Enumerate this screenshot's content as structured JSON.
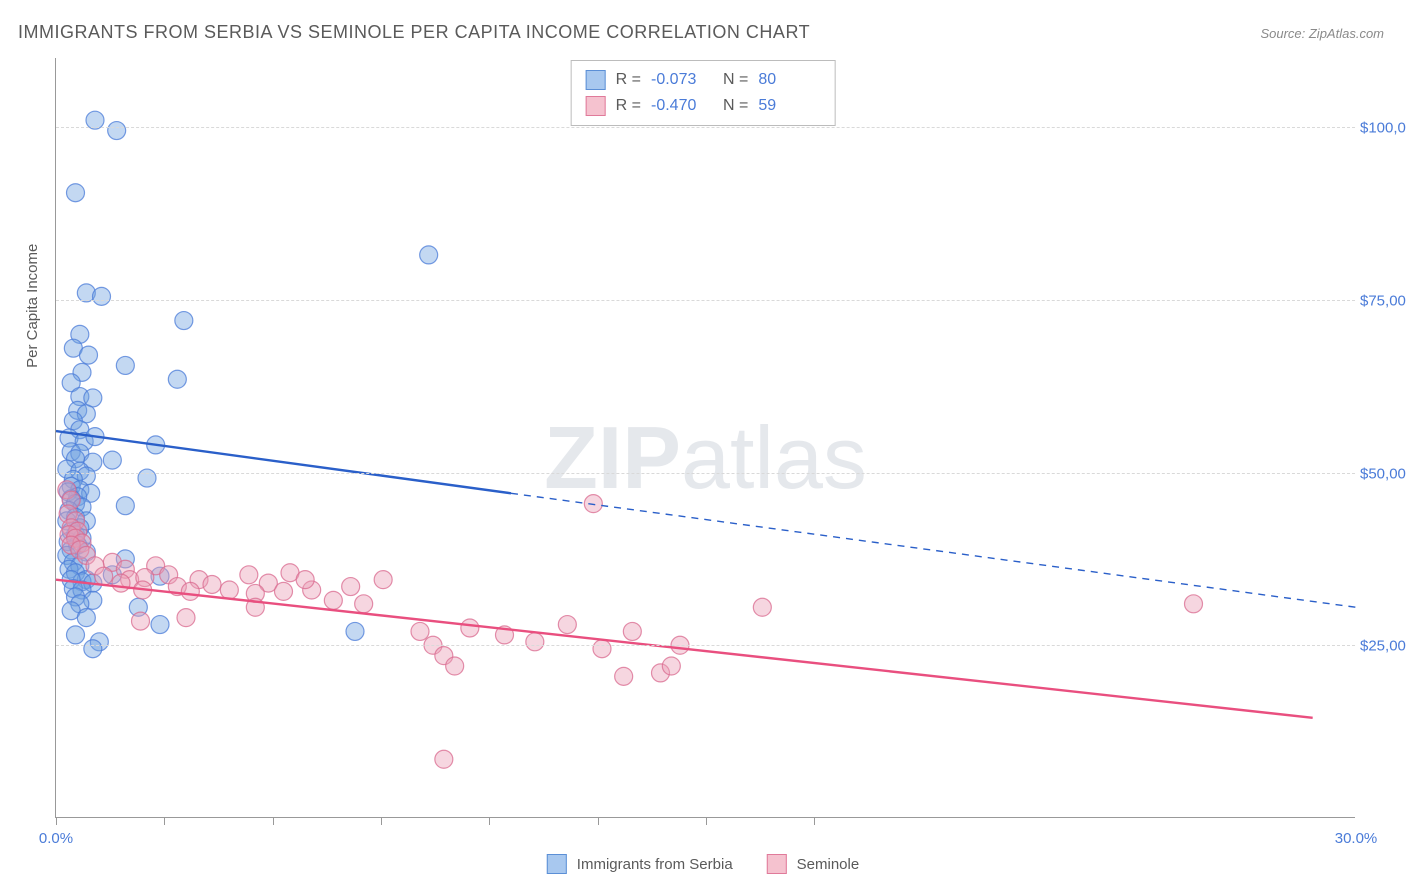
{
  "title": "IMMIGRANTS FROM SERBIA VS SEMINOLE PER CAPITA INCOME CORRELATION CHART",
  "source": "Source: ZipAtlas.com",
  "watermark": {
    "bold": "ZIP",
    "rest": "atlas"
  },
  "y_axis_label": "Per Capita Income",
  "chart": {
    "type": "scatter",
    "xlim": [
      0,
      30
    ],
    "ylim": [
      0,
      110000
    ],
    "x_ticks_minor": [
      0,
      2.5,
      5,
      7.5,
      10,
      12.5,
      15,
      17.5
    ],
    "x_tick_labels": [
      {
        "x": 0,
        "label": "0.0%"
      },
      {
        "x": 30,
        "label": "30.0%"
      }
    ],
    "y_grid": [
      {
        "y": 25000,
        "label": "$25,000"
      },
      {
        "y": 50000,
        "label": "$50,000"
      },
      {
        "y": 75000,
        "label": "$75,000"
      },
      {
        "y": 100000,
        "label": "$100,000"
      }
    ],
    "legend_top": [
      {
        "swatch_fill": "#a8c8ef",
        "swatch_stroke": "#5b8fd6",
        "r_label": "R =",
        "r_value": "-0.073",
        "n_label": "N =",
        "n_value": "80"
      },
      {
        "swatch_fill": "#f5c2cf",
        "swatch_stroke": "#e07a9a",
        "r_label": "R =",
        "r_value": "-0.470",
        "n_label": "N =",
        "n_value": "59"
      }
    ],
    "legend_bottom": [
      {
        "swatch_fill": "#a8c8ef",
        "swatch_stroke": "#5b8fd6",
        "label": "Immigrants from Serbia"
      },
      {
        "swatch_fill": "#f5c2cf",
        "swatch_stroke": "#e07a9a",
        "label": "Seminole"
      }
    ],
    "marker_radius": 9,
    "marker_opacity": 0.42,
    "series": [
      {
        "name": "serbia",
        "fill": "#6fa3e0",
        "stroke": "#4a7bd8",
        "points": [
          [
            0.9,
            101000
          ],
          [
            1.4,
            99500
          ],
          [
            0.45,
            90500
          ],
          [
            0.7,
            76000
          ],
          [
            1.05,
            75500
          ],
          [
            2.95,
            72000
          ],
          [
            0.55,
            70000
          ],
          [
            0.4,
            68000
          ],
          [
            0.75,
            67000
          ],
          [
            0.6,
            64500
          ],
          [
            1.6,
            65500
          ],
          [
            2.8,
            63500
          ],
          [
            0.35,
            63000
          ],
          [
            0.55,
            61000
          ],
          [
            0.85,
            60800
          ],
          [
            0.5,
            59000
          ],
          [
            0.7,
            58500
          ],
          [
            0.4,
            57500
          ],
          [
            0.55,
            56200
          ],
          [
            0.3,
            55000
          ],
          [
            0.65,
            54500
          ],
          [
            0.9,
            55200
          ],
          [
            2.3,
            54000
          ],
          [
            0.35,
            53000
          ],
          [
            0.55,
            52800
          ],
          [
            0.45,
            52000
          ],
          [
            0.85,
            51500
          ],
          [
            1.3,
            51800
          ],
          [
            0.25,
            50500
          ],
          [
            0.55,
            50200
          ],
          [
            0.7,
            49500
          ],
          [
            0.4,
            49000
          ],
          [
            2.1,
            49200
          ],
          [
            0.35,
            48000
          ],
          [
            0.55,
            47500
          ],
          [
            0.28,
            47200
          ],
          [
            0.8,
            47000
          ],
          [
            0.5,
            46500
          ],
          [
            0.35,
            46200
          ],
          [
            0.45,
            45500
          ],
          [
            0.6,
            45000
          ],
          [
            0.3,
            44500
          ],
          [
            8.6,
            81500
          ],
          [
            0.45,
            43500
          ],
          [
            0.7,
            43000
          ],
          [
            0.25,
            43000
          ],
          [
            1.6,
            45200
          ],
          [
            0.55,
            42000
          ],
          [
            0.35,
            41500
          ],
          [
            0.45,
            41000
          ],
          [
            0.6,
            40500
          ],
          [
            0.28,
            40000
          ],
          [
            0.5,
            39500
          ],
          [
            0.35,
            38800
          ],
          [
            0.7,
            38500
          ],
          [
            0.25,
            38000
          ],
          [
            1.6,
            37500
          ],
          [
            0.4,
            37000
          ],
          [
            0.55,
            36500
          ],
          [
            0.3,
            36000
          ],
          [
            0.45,
            35500
          ],
          [
            2.4,
            35000
          ],
          [
            0.7,
            34500
          ],
          [
            0.6,
            34200
          ],
          [
            1.3,
            35200
          ],
          [
            0.35,
            34500
          ],
          [
            0.85,
            34000
          ],
          [
            0.4,
            33200
          ],
          [
            0.6,
            33000
          ],
          [
            0.45,
            32000
          ],
          [
            0.85,
            31500
          ],
          [
            0.55,
            31000
          ],
          [
            1.9,
            30500
          ],
          [
            0.35,
            30000
          ],
          [
            0.7,
            29000
          ],
          [
            2.4,
            28000
          ],
          [
            0.45,
            26500
          ],
          [
            1.0,
            25500
          ],
          [
            0.85,
            24500
          ],
          [
            6.9,
            27000
          ]
        ],
        "trend": {
          "solid": [
            [
              0,
              56000
            ],
            [
              10.5,
              47000
            ]
          ],
          "dashed": [
            [
              10.5,
              47000
            ],
            [
              30,
              30500
            ]
          ],
          "color": "#2a5fc9",
          "width": 2.4
        }
      },
      {
        "name": "seminole",
        "fill": "#ea9db5",
        "stroke": "#d96a8f",
        "points": [
          [
            0.25,
            47500
          ],
          [
            0.35,
            46000
          ],
          [
            0.28,
            44000
          ],
          [
            0.45,
            43000
          ],
          [
            0.35,
            42000
          ],
          [
            0.5,
            41500
          ],
          [
            0.3,
            41000
          ],
          [
            0.45,
            40500
          ],
          [
            0.6,
            39800
          ],
          [
            0.35,
            39500
          ],
          [
            0.55,
            38800
          ],
          [
            0.7,
            38000
          ],
          [
            1.3,
            37000
          ],
          [
            0.9,
            36500
          ],
          [
            1.6,
            36000
          ],
          [
            1.1,
            35000
          ],
          [
            2.3,
            36500
          ],
          [
            1.7,
            34500
          ],
          [
            1.5,
            34000
          ],
          [
            2.05,
            34800
          ],
          [
            2.6,
            35200
          ],
          [
            2.0,
            33000
          ],
          [
            3.3,
            34500
          ],
          [
            2.8,
            33500
          ],
          [
            3.1,
            32800
          ],
          [
            3.6,
            33800
          ],
          [
            4.0,
            33000
          ],
          [
            4.45,
            35200
          ],
          [
            4.9,
            34000
          ],
          [
            4.6,
            32500
          ],
          [
            5.4,
            35500
          ],
          [
            5.25,
            32800
          ],
          [
            5.9,
            33000
          ],
          [
            5.75,
            34500
          ],
          [
            6.4,
            31500
          ],
          [
            6.8,
            33500
          ],
          [
            7.1,
            31000
          ],
          [
            7.55,
            34500
          ],
          [
            8.4,
            27000
          ],
          [
            8.7,
            25000
          ],
          [
            8.95,
            23500
          ],
          [
            9.55,
            27500
          ],
          [
            9.2,
            22000
          ],
          [
            10.35,
            26500
          ],
          [
            11.05,
            25500
          ],
          [
            11.8,
            28000
          ],
          [
            12.4,
            45500
          ],
          [
            12.6,
            24500
          ],
          [
            13.3,
            27000
          ],
          [
            13.1,
            20500
          ],
          [
            13.95,
            21000
          ],
          [
            14.2,
            22000
          ],
          [
            14.4,
            25000
          ],
          [
            16.3,
            30500
          ],
          [
            26.25,
            31000
          ],
          [
            8.95,
            8500
          ],
          [
            1.95,
            28500
          ],
          [
            3.0,
            29000
          ],
          [
            4.6,
            30500
          ]
        ],
        "trend": {
          "solid": [
            [
              0,
              34500
            ],
            [
              29,
              14500
            ]
          ],
          "dashed": null,
          "color": "#e94f7f",
          "width": 2.4
        }
      }
    ]
  }
}
